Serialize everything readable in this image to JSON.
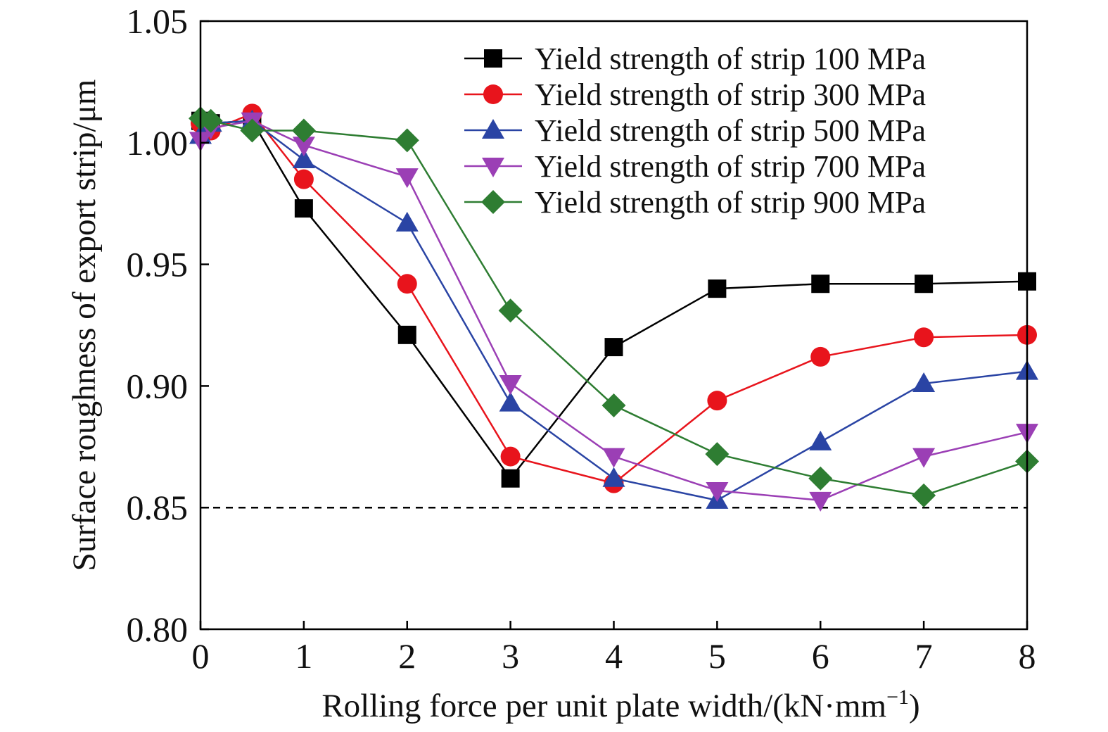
{
  "chart_data": {
    "type": "line",
    "title": "",
    "xlabel": "Rolling force per unit plate width/(kN·mm",
    "xlabel_sup": "−1",
    "xlabel_close": ")",
    "ylabel": "Surface roughness of export strip/μm",
    "xlim": [
      0,
      8
    ],
    "ylim": [
      0.8,
      1.05
    ],
    "xticks": [
      0,
      1,
      2,
      3,
      4,
      5,
      6,
      7,
      8
    ],
    "xtick_labels": [
      "0",
      "1",
      "2",
      "3",
      "4",
      "5",
      "6",
      "7",
      "8"
    ],
    "yticks": [
      0.8,
      0.85,
      0.9,
      0.95,
      1.0,
      1.05
    ],
    "ytick_labels": [
      "0.80",
      "0.85",
      "0.90",
      "0.95",
      "1.00",
      "1.05"
    ],
    "grid": false,
    "legend_position": "top-right",
    "reference_line": {
      "y": 0.85,
      "style": "dashed",
      "color": "#000000"
    },
    "series": [
      {
        "name": "Yield strength of strip 100 MPa",
        "color": "#000000",
        "marker": "square",
        "x": [
          0,
          0.1,
          0.5,
          1,
          2,
          3,
          4,
          5,
          6,
          7,
          8
        ],
        "y": [
          1.009,
          1.008,
          1.009,
          0.973,
          0.921,
          0.862,
          0.916,
          0.94,
          0.942,
          0.942,
          0.943
        ]
      },
      {
        "name": "Yield strength of strip 300 MPa",
        "color": "#e8141c",
        "marker": "circle",
        "x": [
          0,
          0.1,
          0.5,
          1,
          2,
          3,
          4,
          5,
          6,
          7,
          8
        ],
        "y": [
          1.008,
          1.005,
          1.012,
          0.985,
          0.942,
          0.871,
          0.86,
          0.894,
          0.912,
          0.92,
          0.921
        ]
      },
      {
        "name": "Yield strength of strip 500 MPa",
        "color": "#2a44a4",
        "marker": "triangle-up",
        "x": [
          0,
          0.1,
          0.5,
          1,
          2,
          3,
          4,
          5,
          6,
          7,
          8
        ],
        "y": [
          1.003,
          1.008,
          1.009,
          0.993,
          0.967,
          0.893,
          0.862,
          0.853,
          0.877,
          0.901,
          0.906
        ]
      },
      {
        "name": "Yield strength of strip 700 MPa",
        "color": "#9b3fb5",
        "marker": "triangle-down",
        "x": [
          0,
          0.1,
          0.5,
          1,
          2,
          3,
          4,
          5,
          6,
          7,
          8
        ],
        "y": [
          1.001,
          1.006,
          1.009,
          0.999,
          0.986,
          0.901,
          0.871,
          0.857,
          0.853,
          0.871,
          0.881
        ]
      },
      {
        "name": "Yield strength of strip 900 MPa",
        "color": "#2e7d32",
        "marker": "diamond",
        "x": [
          0,
          0.1,
          0.5,
          1,
          2,
          3,
          4,
          5,
          6,
          7,
          8
        ],
        "y": [
          1.01,
          1.009,
          1.005,
          1.005,
          1.001,
          0.931,
          0.892,
          0.872,
          0.862,
          0.855,
          0.869
        ]
      }
    ]
  }
}
